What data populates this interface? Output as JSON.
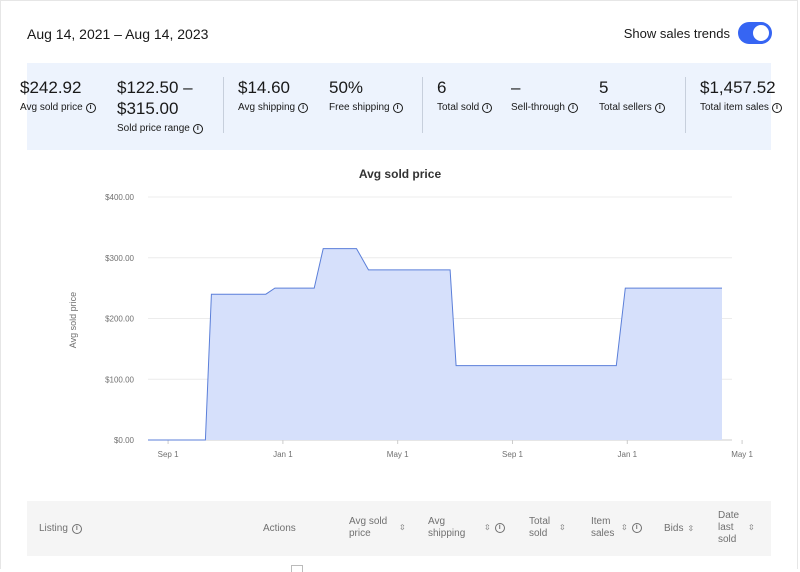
{
  "header": {
    "date_range": "Aug 14, 2021 – Aug 14, 2023",
    "trends_label": "Show sales trends",
    "trends_on": true
  },
  "stats": [
    {
      "value": "$242.92",
      "label": "Avg sold price"
    },
    {
      "value": "$122.50 –",
      "value2": "$315.00",
      "label": "Sold price range"
    },
    {
      "value": "$14.60",
      "label": "Avg shipping"
    },
    {
      "value": "50%",
      "label": "Free shipping"
    },
    {
      "value": "6",
      "label": "Total sold"
    },
    {
      "value": "–",
      "label": "Sell-through"
    },
    {
      "value": "5",
      "label": "Total sellers"
    },
    {
      "value": "$1,457.52",
      "label": "Total item sales"
    }
  ],
  "chart_data": {
    "type": "area",
    "title": "Avg sold price",
    "ylabel": "Avg sold price",
    "xlabel": "",
    "ylim": [
      0,
      400
    ],
    "y_ticks": [
      "$0.00",
      "$100.00",
      "$200.00",
      "$300.00",
      "$400.00"
    ],
    "x_ticks": [
      "Sep 1",
      "Jan 1",
      "May 1",
      "Sep 1",
      "Jan 1",
      "May 1"
    ],
    "grid": true,
    "color": "#d6e0fb",
    "line_color": "#5b7fd9",
    "x_months": [
      0,
      1.9,
      2.1,
      3.9,
      4.2,
      5.5,
      5.8,
      6.9,
      7.3,
      10.0,
      10.2,
      15.5,
      15.8,
      19.0
    ],
    "values": [
      0,
      0,
      240,
      240,
      250,
      250,
      315,
      315,
      280,
      280,
      122.5,
      122.5,
      250,
      250
    ]
  },
  "table": {
    "columns": [
      {
        "label": "Listing",
        "info": true
      },
      {
        "label": "Actions"
      },
      {
        "label": "Avg sold price",
        "sort": true
      },
      {
        "label": "Avg shipping",
        "sort": true,
        "info": true
      },
      {
        "label": "Total sold",
        "sort": true
      },
      {
        "label": "Item sales",
        "sort": true,
        "info": true
      },
      {
        "label": "Bids",
        "sort": true
      },
      {
        "label": "Date last sold",
        "sort": true
      }
    ]
  }
}
